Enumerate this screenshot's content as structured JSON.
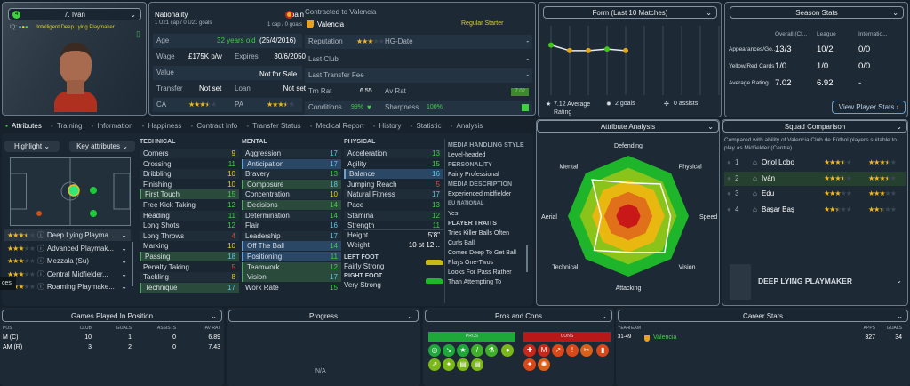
{
  "player": {
    "squad_number": "4",
    "name": "7. Iván",
    "iq_label": "IQ:",
    "description": "Intelligent  Deep Lying Playmaker"
  },
  "info": {
    "nationality_label": "Nationality",
    "nationality": "Spain",
    "u21": "1 U21 cap / 0 U21 goals",
    "caps": "1 cap / 0 goals",
    "age_label": "Age",
    "age": "32 years old",
    "dob": "(25/4/2016)",
    "wage_label": "Wage",
    "wage": "£175K p/w",
    "expires_label": "Expires",
    "expires": "30/6/2050",
    "value_label": "Value",
    "value": "Not for Sale",
    "transfer_label": "Transfer",
    "transfer": "Not set",
    "loan_label": "Loan",
    "loan": "Not set",
    "ca_label": "CA",
    "ca_stars": 3.5,
    "pa_label": "PA",
    "pa_stars": 3.5,
    "contract_label": "Contracted to Valencia",
    "club": "Valencia",
    "squad_status": "Regular Starter",
    "reputation_label": "Reputation",
    "reputation_stars": 3,
    "hg_label": "HG-Date",
    "hg": "-",
    "last_club_label": "Last Club",
    "last_club": "-",
    "last_fee_label": "Last Transfer Fee",
    "last_fee": "-",
    "trn_label": "Trn Rat",
    "trn": "6.55",
    "av_label": "Av Rat",
    "av": "7.02",
    "conditions_label": "Conditions",
    "conditions": "99%",
    "sharpness_label": "Sharpness",
    "sharpness": "100%"
  },
  "form": {
    "title": "Form (Last 10 Matches)",
    "ratings": [
      7.6,
      6.9,
      6.9,
      7.1,
      6.9
    ],
    "avg": "7.12 Average Rating",
    "goals": "2 goals",
    "assists": "0 assists"
  },
  "season": {
    "title": "Season Stats",
    "cols": [
      "Overall (Cl...",
      "League",
      "Internatio..."
    ],
    "rows": [
      {
        "label": "Appearances/Go...",
        "vals": [
          "13/3",
          "10/2",
          "0/0"
        ]
      },
      {
        "label": "Yellow/Red Cards",
        "vals": [
          "1/0",
          "1/0",
          "0/0"
        ]
      },
      {
        "label": "Average Rating",
        "vals": [
          "7.02",
          "6.92",
          "-"
        ]
      }
    ],
    "button": "View Player Stats ›"
  },
  "tabs": [
    "Attributes",
    "Training",
    "Information",
    "Happiness",
    "Contract Info",
    "Transfer Status",
    "Medical Report",
    "History",
    "Statistic",
    "Analysis"
  ],
  "pitch": {
    "highlight": "Highlight",
    "key": "Key attributes"
  },
  "roles": [
    {
      "stars": 3.5,
      "name": "Deep Lying Playma..."
    },
    {
      "stars": 3,
      "name": "Advanced Playmak..."
    },
    {
      "stars": 3,
      "name": "Mezzala (Su)"
    },
    {
      "stars": 3,
      "name": "Central Midfielder..."
    },
    {
      "stars": 3,
      "name": "Roaming Playmake..."
    }
  ],
  "tooltip": "ces",
  "technical": {
    "title": "TECHNICAL",
    "items": [
      [
        "Corners",
        "9",
        "y",
        0
      ],
      [
        "Crossing",
        "11",
        "g",
        0
      ],
      [
        "Dribbling",
        "10",
        "y",
        0
      ],
      [
        "Finishing",
        "10",
        "y",
        0
      ],
      [
        "First Touch",
        "15",
        "g",
        1
      ],
      [
        "Free Kick Taking",
        "12",
        "g",
        0
      ],
      [
        "Heading",
        "11",
        "g",
        0
      ],
      [
        "Long Shots",
        "12",
        "g",
        0
      ],
      [
        "Long Throws",
        "4",
        "r",
        0
      ],
      [
        "Marking",
        "10",
        "y",
        0
      ],
      [
        "Passing",
        "18",
        "c",
        1
      ],
      [
        "Penalty Taking",
        "5",
        "r",
        0
      ],
      [
        "Tackling",
        "8",
        "y",
        0
      ],
      [
        "Technique",
        "17",
        "c",
        1
      ]
    ]
  },
  "mental": {
    "title": "MENTAL",
    "items": [
      [
        "Aggression",
        "17",
        "c",
        0
      ],
      [
        "Anticipation",
        "17",
        "c",
        2
      ],
      [
        "Bravery",
        "13",
        "g",
        0
      ],
      [
        "Composure",
        "18",
        "c",
        1
      ],
      [
        "Concentration",
        "10",
        "y",
        0
      ],
      [
        "Decisions",
        "14",
        "g",
        1
      ],
      [
        "Determination",
        "14",
        "g",
        0
      ],
      [
        "Flair",
        "16",
        "c",
        0
      ],
      [
        "Leadership",
        "17",
        "c",
        0
      ],
      [
        "Off The Ball",
        "14",
        "g",
        2
      ],
      [
        "Positioning",
        "11",
        "g",
        2
      ],
      [
        "Teamwork",
        "12",
        "g",
        1
      ],
      [
        "Vision",
        "17",
        "c",
        1
      ],
      [
        "Work Rate",
        "15",
        "g",
        0
      ]
    ]
  },
  "physical": {
    "title": "PHYSICAL",
    "items": [
      [
        "Acceleration",
        "13",
        "g",
        0
      ],
      [
        "Agility",
        "15",
        "g",
        0
      ],
      [
        "Balance",
        "16",
        "c",
        2
      ],
      [
        "Jumping Reach",
        "5",
        "r",
        0
      ],
      [
        "Natural Fitness",
        "17",
        "c",
        0
      ],
      [
        "Pace",
        "13",
        "g",
        0
      ],
      [
        "Stamina",
        "12",
        "g",
        0
      ],
      [
        "Strength",
        "11",
        "g",
        0
      ]
    ],
    "height_label": "Height",
    "height": "5'8\"",
    "weight_label": "Weight",
    "weight": "10 st 12...",
    "left_foot_label": "LEFT FOOT",
    "left_foot": "Fairly Strong",
    "right_foot_label": "RIGHT FOOT",
    "right_foot": "Very Strong"
  },
  "media": {
    "style_label": "MEDIA HANDLING STYLE",
    "style": "Level-headed",
    "personality_label": "PERSONALITY",
    "personality": "Fairly Professional",
    "desc_label": "MEDIA DESCRIPTION",
    "desc": "Experienced midfielder",
    "eu_label": "EU NATIONAL",
    "eu": "Yes",
    "traits_label": "PLAYER TRAITS",
    "traits": [
      "Tries Killer Balls Often",
      "Curls Ball",
      "Comes Deep To Get Ball",
      "Plays One-Twos",
      "Looks For Pass Rather",
      "Than Attempting To"
    ]
  },
  "analysis": {
    "title": "Attribute Analysis",
    "axes": [
      "Defending",
      "Physical",
      "Speed",
      "Vision",
      "Attacking",
      "Technical",
      "Aerial",
      "Mental"
    ],
    "values": [
      0.55,
      0.75,
      0.7,
      0.85,
      0.6,
      0.8,
      0.45,
      0.85
    ]
  },
  "squad": {
    "title": "Squad Comparison",
    "note": "Compared with ability of Valencia Club de Fútbol players suitable to play as Midfielder (Centre)",
    "rows": [
      {
        "rank": "1",
        "name": "Oriol Lobo",
        "ca": 3.5,
        "pa": 3.5
      },
      {
        "rank": "2",
        "name": "Iván",
        "ca": 3.5,
        "pa": 3.5
      },
      {
        "rank": "3",
        "name": "Edu",
        "ca": 3,
        "pa": 3
      },
      {
        "rank": "4",
        "name": "Başar Baş",
        "ca": 2.5,
        "pa": 2.5
      }
    ],
    "role": "DEEP LYING PLAYMAKER"
  },
  "games": {
    "title": "Games Played In Position",
    "cols": [
      "POS",
      "CLUB",
      "GOALS",
      "ASSISTS",
      "AV RAT"
    ],
    "rows": [
      [
        "M (C)",
        "10",
        "1",
        "0",
        "6.89"
      ],
      [
        "AM (R)",
        "3",
        "2",
        "0",
        "7.43"
      ]
    ]
  },
  "progress": {
    "title": "Progress",
    "empty": "N/A"
  },
  "pros": {
    "title": "Pros and Cons",
    "pros_label": "PROS",
    "cons_label": "CONS"
  },
  "career": {
    "title": "Career Stats",
    "cols": [
      "YEAR",
      "TEAM",
      "APPS",
      "GOALS"
    ],
    "rows": [
      [
        "31-49",
        "Valencia",
        "327",
        "34"
      ]
    ]
  }
}
